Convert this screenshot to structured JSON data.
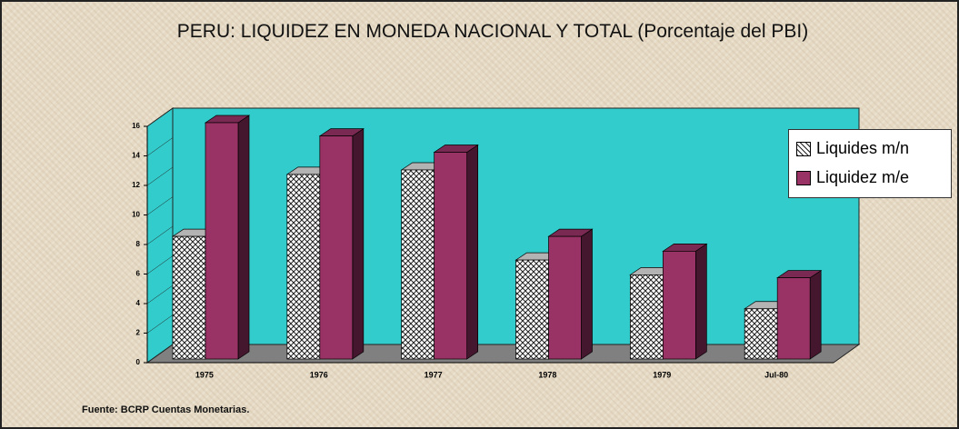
{
  "chart_data": {
    "type": "bar3d",
    "title": "PERU:  LIQUIDEZ EN  MONEDA NACIONAL Y TOTAL (Porcentaje del PBI)",
    "source": "Fuente: BCRP Cuentas Monetarias.",
    "categories": [
      "1975",
      "1976",
      "1977",
      "1978",
      "1979",
      "Jul-80"
    ],
    "series": [
      {
        "name": "Liquides  m/n",
        "color": "#ffffff",
        "values": [
          8.3,
          12.5,
          12.8,
          6.7,
          5.7,
          3.4
        ]
      },
      {
        "name": "Liquidez  m/e",
        "color": "#993366",
        "values": [
          16.0,
          15.1,
          14.0,
          8.3,
          7.3,
          5.5
        ]
      }
    ],
    "ylim": [
      0,
      16
    ],
    "yticks": [
      0,
      2,
      4,
      6,
      8,
      10,
      12,
      14,
      16
    ]
  }
}
